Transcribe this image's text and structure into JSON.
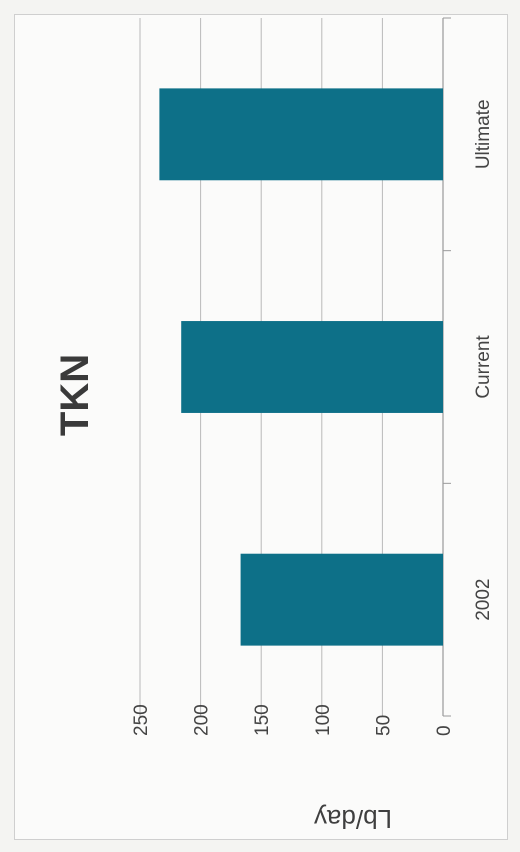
{
  "chart_data": {
    "type": "bar",
    "title": "TKN",
    "xlabel": "",
    "ylabel": "Lb/day",
    "categories": [
      "2002",
      "Current",
      "Ultimate"
    ],
    "values": [
      167,
      216,
      234
    ],
    "ylim": [
      0,
      250
    ],
    "yticks": [
      "0",
      "50",
      "100",
      "150",
      "200",
      "250"
    ],
    "grid": true,
    "legend": "none",
    "bar_color": "#0d7088",
    "gridline_color": "#b9b9b9"
  }
}
